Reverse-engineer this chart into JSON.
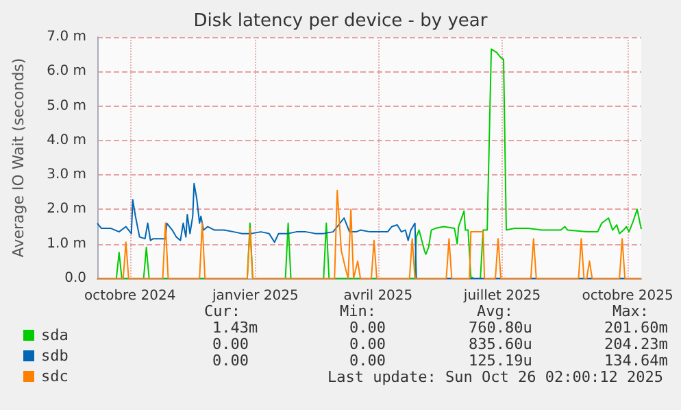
{
  "chart_data": {
    "type": "line",
    "title": "Disk latency per device - by year",
    "ylabel": "Average IO Wait (seconds)",
    "xlim": [
      "2024-09-22",
      "2025-10-26"
    ],
    "xticks": [
      {
        "value": "2024-10-16",
        "label": "octobre 2024"
      },
      {
        "value": "2025-01-16",
        "label": "janvier 2025"
      },
      {
        "value": "2025-04-16",
        "label": "avril 2025"
      },
      {
        "value": "2025-07-16",
        "label": "juillet 2025"
      },
      {
        "value": "2025-10-16",
        "label": "octobre 2025"
      }
    ],
    "ylim": [
      0,
      7
    ],
    "yticks": [
      {
        "value": 0,
        "label": "0.0"
      },
      {
        "value": 1,
        "label": "1.0 m"
      },
      {
        "value": 2,
        "label": "2.0 m"
      },
      {
        "value": 3,
        "label": "3.0 m"
      },
      {
        "value": 4,
        "label": "4.0 m"
      },
      {
        "value": 5,
        "label": "5.0 m"
      },
      {
        "value": 6,
        "label": "6.0 m"
      },
      {
        "value": 7,
        "label": "7.0 m"
      }
    ],
    "grid": true,
    "legend": "bottom",
    "marker": "none",
    "line_style": "solid",
    "series": [
      {
        "name": "sda",
        "color": "#00cc00",
        "x": [
          "2024-09-22",
          "2024-10-06",
          "2024-10-08",
          "2024-10-10",
          "2024-10-26",
          "2024-10-28",
          "2024-10-30",
          "2025-01-10",
          "2025-01-12",
          "2025-01-14",
          "2025-02-07",
          "2025-02-09",
          "2025-02-11",
          "2025-03-07",
          "2025-03-09",
          "2025-03-11",
          "2025-05-13",
          "2025-05-14",
          "2025-05-16",
          "2025-05-20",
          "2025-05-21",
          "2025-05-23",
          "2025-05-25",
          "2025-05-28",
          "2025-06-03",
          "2025-06-11",
          "2025-06-13",
          "2025-06-14",
          "2025-06-18",
          "2025-06-19",
          "2025-06-21",
          "2025-06-23",
          "2025-06-25",
          "2025-06-30",
          "2025-07-02",
          "2025-07-05",
          "2025-07-08",
          "2025-07-12",
          "2025-07-15",
          "2025-07-17",
          "2025-07-19",
          "2025-07-25",
          "2025-08-04",
          "2025-08-14",
          "2025-08-28",
          "2025-08-31",
          "2025-09-02",
          "2025-09-16",
          "2025-09-24",
          "2025-09-27",
          "2025-10-02",
          "2025-10-05",
          "2025-10-08",
          "2025-10-10",
          "2025-10-13",
          "2025-10-15",
          "2025-10-17",
          "2025-10-20",
          "2025-10-23",
          "2025-10-26"
        ],
        "values": [
          0,
          0,
          0.75,
          0,
          0,
          0.9,
          0,
          0,
          1.6,
          0,
          0,
          1.6,
          0,
          0,
          1.6,
          0,
          0,
          1.2,
          1.4,
          0.8,
          0.7,
          0.9,
          1.4,
          1.45,
          1.5,
          1.45,
          1.0,
          1.5,
          1.95,
          1.4,
          1.4,
          0.05,
          0,
          0,
          1.4,
          1.4,
          6.65,
          6.55,
          6.4,
          6.35,
          1.4,
          1.45,
          1.45,
          1.4,
          1.4,
          1.5,
          1.4,
          1.35,
          1.35,
          1.6,
          1.75,
          1.4,
          1.55,
          1.3,
          1.4,
          1.5,
          1.35,
          1.65,
          2.0,
          1.43
        ]
      },
      {
        "name": "sdb",
        "color": "#0066b3",
        "x": [
          "2024-09-22",
          "2024-09-25",
          "2024-10-02",
          "2024-10-08",
          "2024-10-13",
          "2024-10-17",
          "2024-10-18",
          "2024-10-20",
          "2024-10-23",
          "2024-10-27",
          "2024-10-29",
          "2024-10-31",
          "2024-11-02",
          "2024-11-11",
          "2024-11-12",
          "2024-11-16",
          "2024-11-19",
          "2024-11-22",
          "2024-11-24",
          "2024-11-26",
          "2024-11-27",
          "2024-11-29",
          "2024-12-01",
          "2024-12-02",
          "2024-12-04",
          "2024-12-06",
          "2024-12-07",
          "2024-12-09",
          "2024-12-12",
          "2024-12-17",
          "2024-12-24",
          "2024-12-31",
          "2025-01-06",
          "2025-01-13",
          "2025-01-20",
          "2025-01-26",
          "2025-01-30",
          "2025-02-02",
          "2025-02-09",
          "2025-02-15",
          "2025-02-22",
          "2025-03-01",
          "2025-03-07",
          "2025-03-14",
          "2025-03-22",
          "2025-03-26",
          "2025-03-31",
          "2025-04-03",
          "2025-04-10",
          "2025-04-16",
          "2025-04-23",
          "2025-04-26",
          "2025-04-30",
          "2025-05-03",
          "2025-05-06",
          "2025-05-08",
          "2025-05-10",
          "2025-05-13",
          "2025-05-14",
          "2025-10-26"
        ],
        "values": [
          1.6,
          1.45,
          1.45,
          1.35,
          1.5,
          1.3,
          2.28,
          1.8,
          1.2,
          1.15,
          1.6,
          1.1,
          1.15,
          1.15,
          1.6,
          1.4,
          1.2,
          1.1,
          1.6,
          1.2,
          1.85,
          1.3,
          1.8,
          2.75,
          2.3,
          1.6,
          1.8,
          1.4,
          1.5,
          1.4,
          1.4,
          1.35,
          1.3,
          1.3,
          1.35,
          1.3,
          1.05,
          1.3,
          1.3,
          1.35,
          1.35,
          1.3,
          1.3,
          1.35,
          1.75,
          1.35,
          1.35,
          1.4,
          1.35,
          1.35,
          1.35,
          1.5,
          1.55,
          1.35,
          1.4,
          1.1,
          1.4,
          1.6,
          0,
          0
        ]
      },
      {
        "name": "sdc",
        "color": "#ff8000",
        "x": [
          "2024-09-22",
          "2024-10-11",
          "2024-10-13",
          "2024-10-15",
          "2024-11-09",
          "2024-11-11",
          "2024-11-13",
          "2024-12-06",
          "2024-12-08",
          "2024-12-10",
          "2025-01-10",
          "2025-01-12",
          "2025-01-14",
          "2025-03-15",
          "2025-03-17",
          "2025-03-20",
          "2025-03-23",
          "2025-03-25",
          "2025-03-27",
          "2025-03-29",
          "2025-04-01",
          "2025-04-03",
          "2025-04-11",
          "2025-04-13",
          "2025-04-15",
          "2025-05-09",
          "2025-05-11",
          "2025-05-13",
          "2025-06-05",
          "2025-06-07",
          "2025-06-09",
          "2025-06-22",
          "2025-06-23",
          "2025-07-02",
          "2025-07-03",
          "2025-07-11",
          "2025-07-13",
          "2025-07-15",
          "2025-08-06",
          "2025-08-08",
          "2025-08-10",
          "2025-09-10",
          "2025-09-12",
          "2025-09-14",
          "2025-09-16",
          "2025-09-18",
          "2025-09-20",
          "2025-10-10",
          "2025-10-12",
          "2025-10-14",
          "2025-10-26"
        ],
        "values": [
          0,
          0,
          1.05,
          0,
          0,
          1.6,
          0,
          0,
          1.6,
          0,
          0,
          1.45,
          0,
          0,
          2.55,
          0.8,
          0.3,
          0,
          2.0,
          0,
          0.5,
          0,
          0,
          1.1,
          0,
          0,
          1.15,
          0,
          0,
          1.15,
          0,
          0,
          1.35,
          1.35,
          0,
          0,
          1.15,
          0,
          0,
          1.15,
          0,
          0,
          1.15,
          0,
          0,
          0.5,
          0,
          0,
          1.15,
          0,
          0
        ]
      }
    ],
    "annotations": [
      "Cur:",
      "Min:",
      "Avg:",
      "Max:",
      "1.43m",
      "0.00",
      "760.80u",
      "201.60m",
      "0.00",
      "0.00",
      "835.60u",
      "204.23m",
      "0.00",
      "0.00",
      "125.19u",
      "134.64m",
      "Last update: Sun Oct 26 02:00:12 2025"
    ]
  }
}
